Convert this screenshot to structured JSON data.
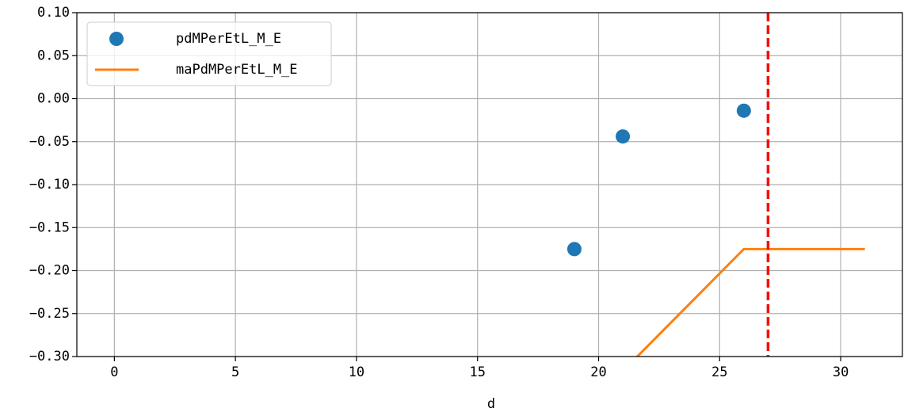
{
  "chart_data": {
    "type": "scatter",
    "xlabel": "d",
    "xlim": [
      -1.55,
      32.55
    ],
    "ylim": [
      -0.3,
      0.1
    ],
    "xticks": [
      0,
      5,
      10,
      15,
      20,
      25,
      30
    ],
    "yticks": [
      {
        "value": 0.1,
        "label": "0.10"
      },
      {
        "value": 0.05,
        "label": "0.05"
      },
      {
        "value": 0.0,
        "label": "0.00"
      },
      {
        "value": -0.05,
        "label": "−0.05"
      },
      {
        "value": -0.1,
        "label": "−0.10"
      },
      {
        "value": -0.15,
        "label": "−0.15"
      },
      {
        "value": -0.2,
        "label": "−0.20"
      },
      {
        "value": -0.25,
        "label": "−0.25"
      },
      {
        "value": -0.3,
        "label": "−0.30"
      }
    ],
    "grid": true,
    "legend": "upper left",
    "series": [
      {
        "name": "pdMPerEtL_M_E",
        "type": "scatter",
        "color": "#1f77b4",
        "x": [
          19,
          21,
          26
        ],
        "values": [
          -0.175,
          -0.044,
          -0.014
        ]
      },
      {
        "name": "maPdMPerEtL_M_E",
        "type": "line",
        "color": "#ff7f0e",
        "x": [
          21,
          26,
          31
        ],
        "values": [
          -0.317,
          -0.175,
          -0.175
        ]
      }
    ],
    "vline": {
      "x": 27,
      "color": "#ff0000"
    }
  }
}
